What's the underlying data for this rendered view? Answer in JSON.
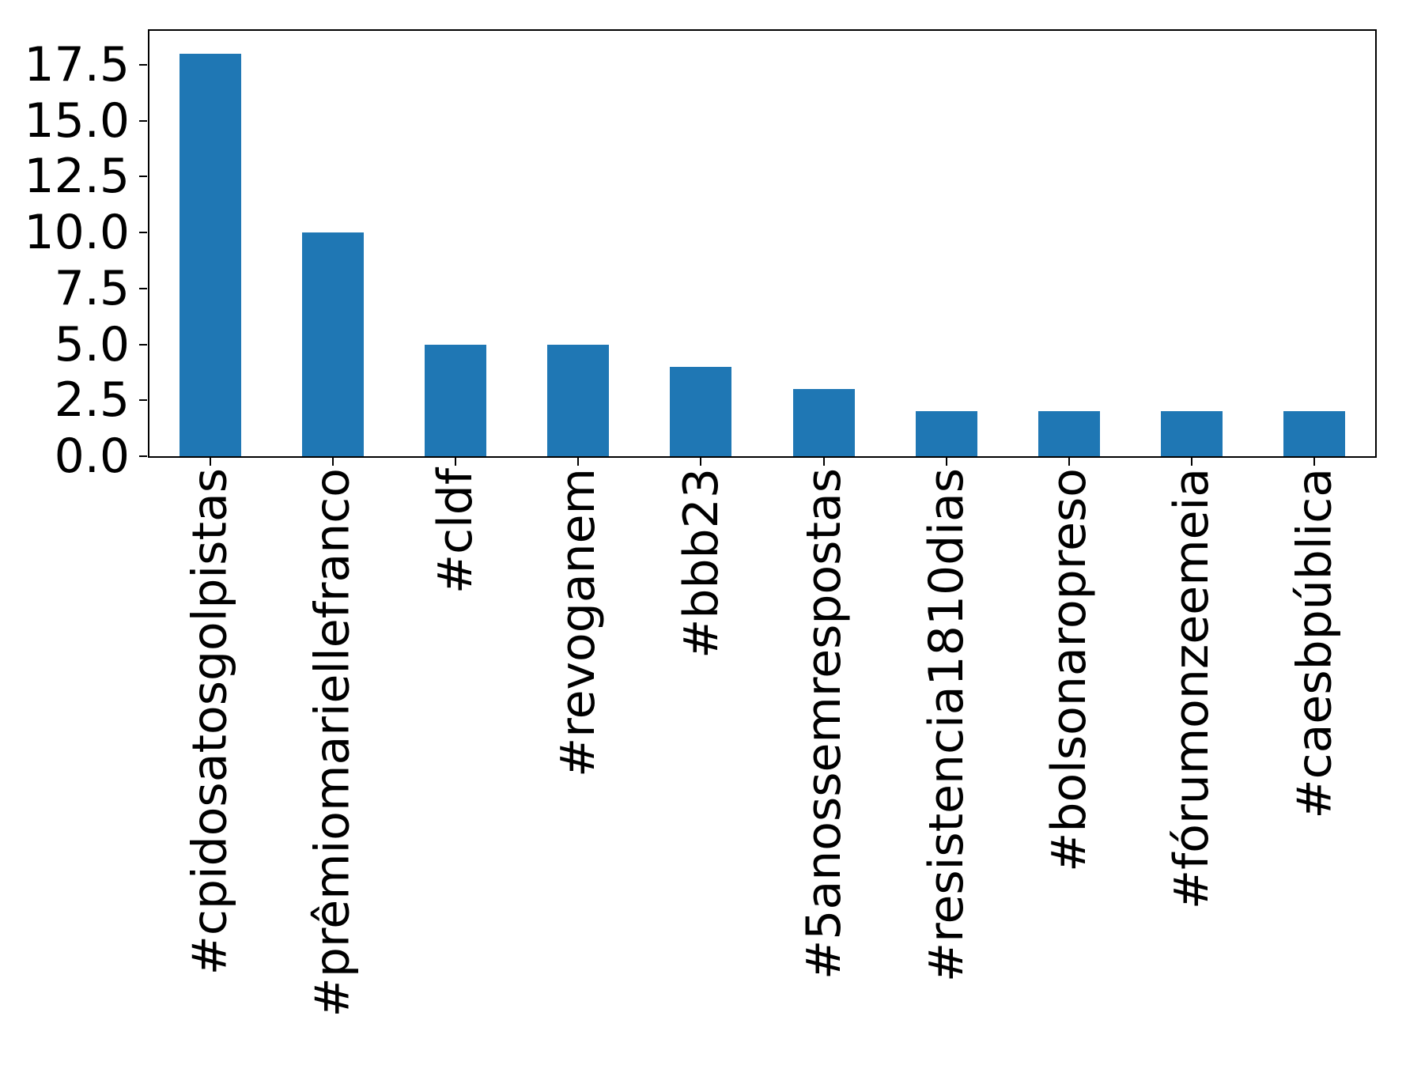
{
  "chart_data": {
    "type": "bar",
    "title": "",
    "xlabel": "",
    "ylabel": "",
    "categories": [
      "#cpidosatosgolpistas",
      "#prêmiomariellefranco",
      "#cldf",
      "#revoganem",
      "#bbb23",
      "#5anossemrespostas",
      "#resistencia1810dias",
      "#bolsonaropreso",
      "#fórumonzeemeia",
      "#caesbpública"
    ],
    "values": [
      18,
      10,
      5,
      5,
      4,
      3,
      2,
      2,
      2,
      2
    ],
    "yticks": [
      0.0,
      2.5,
      5.0,
      7.5,
      10.0,
      12.5,
      15.0,
      17.5
    ],
    "ytick_labels": [
      "0.0",
      "2.5",
      "5.0",
      "7.5",
      "10.0",
      "12.5",
      "15.0",
      "17.5"
    ],
    "ylim": [
      0,
      19.08
    ],
    "xtick_rotation_deg": 90,
    "grid": false,
    "legend": false,
    "bar_color": "#1f77b4",
    "axis_color": "#000000",
    "text_color": "#000000",
    "background_color": "#ffffff"
  }
}
